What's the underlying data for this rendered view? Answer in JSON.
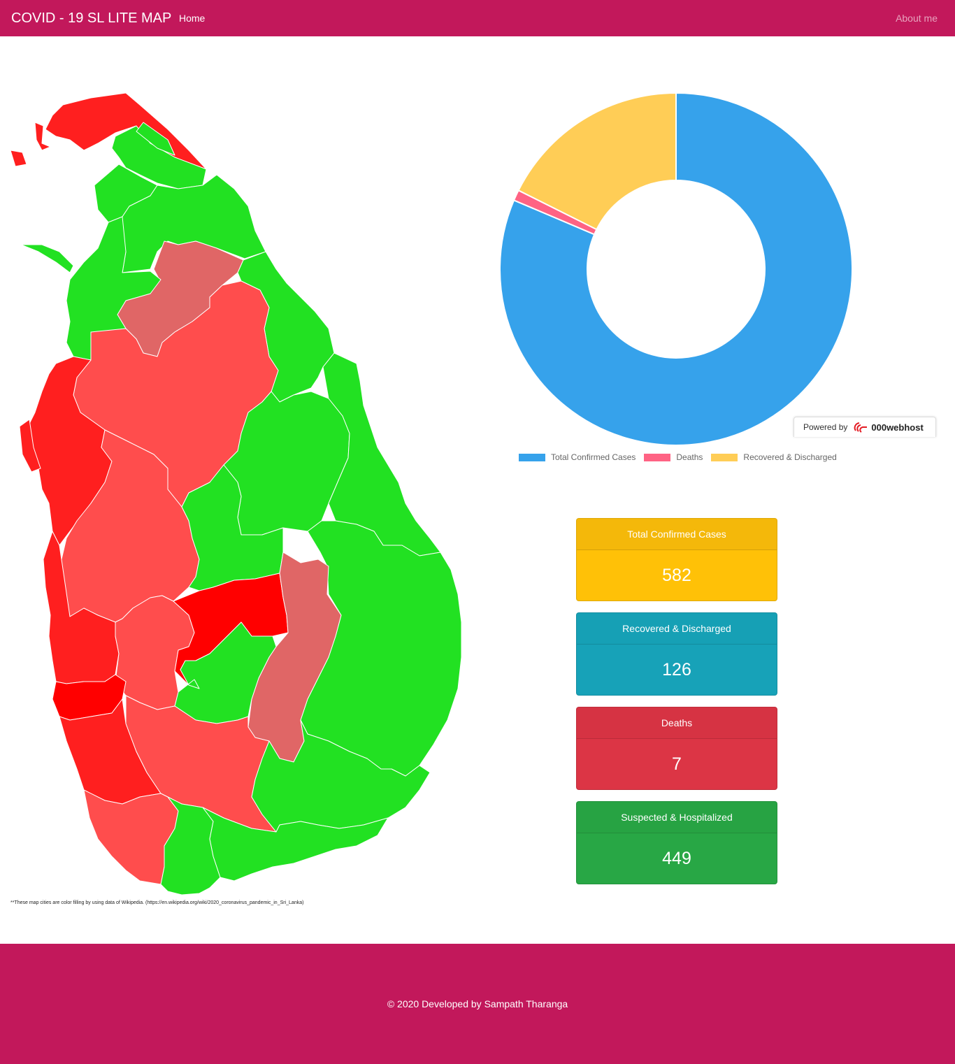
{
  "navbar": {
    "brand": "COVID - 19 SL LITE MAP",
    "home_label": "Home",
    "about_label": "About me",
    "background": "#c2185b"
  },
  "map": {
    "note": "**These map cities are color filling by using data of Wikipedia. (https://en.wikipedia.org/wiki/2020_coronavirus_pandemic_in_Sri_Lanka)",
    "colors": {
      "none": "#22e122",
      "low": "#e06666",
      "medium": "#ff4d4d",
      "high": "#ff1f1f",
      "very_high": "#ff0000"
    }
  },
  "chart_data": {
    "type": "doughnut",
    "categories": [
      "Total Confirmed Cases",
      "Deaths",
      "Recovered & Discharged"
    ],
    "values": [
      582,
      7,
      126
    ],
    "colors": [
      "#36a2eb",
      "#ff6384",
      "#ffcd56"
    ],
    "legend_position": "bottom"
  },
  "powered": {
    "prefix": "Powered by",
    "brand": "000webhost"
  },
  "cards": {
    "confirmed": {
      "label": "Total Confirmed Cases",
      "value": "582"
    },
    "recovered": {
      "label": "Recovered & Discharged",
      "value": "126"
    },
    "deaths": {
      "label": "Deaths",
      "value": "7"
    },
    "suspected": {
      "label": "Suspected & Hospitalized",
      "value": "449"
    }
  },
  "footer": {
    "text": "© 2020 Developed by Sampath Tharanga"
  }
}
